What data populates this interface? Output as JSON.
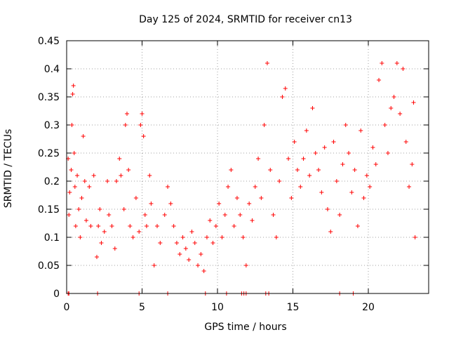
{
  "chart_data": {
    "type": "scatter",
    "title": "Day 125 of 2024, SRMTID for receiver cn13",
    "xlabel": "GPS time / hours",
    "ylabel": "SRMTID / TECUs",
    "xlim": [
      0,
      24
    ],
    "ylim": [
      0,
      0.45
    ],
    "xticks": [
      0,
      5,
      10,
      15,
      20
    ],
    "xtick_labels": [
      "0",
      "5",
      "10",
      "15",
      "20"
    ],
    "yticks": [
      0,
      0.05,
      0.1,
      0.15,
      0.2,
      0.25,
      0.3,
      0.35,
      0.4,
      0.45
    ],
    "ytick_labels": [
      "0",
      "0.05",
      "0.1",
      "0.15",
      "0.2",
      "0.25",
      "0.3",
      "0.35",
      "0.4",
      "0.45"
    ],
    "grid": true,
    "marker": "plus",
    "color": "#ff0000",
    "series": [
      {
        "name": "SRMTID",
        "points": [
          [
            0.1,
            0.24
          ],
          [
            0.15,
            0.14
          ],
          [
            0.2,
            0.18
          ],
          [
            0.3,
            0.22
          ],
          [
            0.35,
            0.3
          ],
          [
            0.4,
            0.355
          ],
          [
            0.45,
            0.37
          ],
          [
            0.5,
            0.25
          ],
          [
            0.55,
            0.19
          ],
          [
            0.6,
            0.12
          ],
          [
            0.7,
            0.21
          ],
          [
            0.8,
            0.15
          ],
          [
            0.9,
            0.1
          ],
          [
            1.0,
            0.17
          ],
          [
            1.1,
            0.28
          ],
          [
            1.2,
            0.2
          ],
          [
            1.3,
            0.13
          ],
          [
            1.5,
            0.19
          ],
          [
            1.6,
            0.12
          ],
          [
            1.8,
            0.21
          ],
          [
            2.0,
            0.065
          ],
          [
            2.1,
            0.12
          ],
          [
            2.2,
            0.15
          ],
          [
            2.3,
            0.09
          ],
          [
            2.5,
            0.11
          ],
          [
            2.7,
            0.2
          ],
          [
            2.8,
            0.14
          ],
          [
            3.0,
            0.12
          ],
          [
            3.2,
            0.08
          ],
          [
            3.3,
            0.2
          ],
          [
            3.5,
            0.24
          ],
          [
            3.6,
            0.21
          ],
          [
            3.8,
            0.15
          ],
          [
            3.9,
            0.3
          ],
          [
            4.0,
            0.32
          ],
          [
            4.1,
            0.22
          ],
          [
            4.2,
            0.12
          ],
          [
            4.4,
            0.1
          ],
          [
            4.6,
            0.17
          ],
          [
            4.8,
            0.11
          ],
          [
            4.9,
            0.3
          ],
          [
            5.0,
            0.32
          ],
          [
            5.1,
            0.28
          ],
          [
            5.2,
            0.14
          ],
          [
            5.3,
            0.12
          ],
          [
            5.5,
            0.21
          ],
          [
            5.6,
            0.16
          ],
          [
            5.8,
            0.05
          ],
          [
            6.0,
            0.12
          ],
          [
            6.2,
            0.09
          ],
          [
            6.5,
            0.14
          ],
          [
            6.7,
            0.19
          ],
          [
            6.9,
            0.16
          ],
          [
            7.1,
            0.12
          ],
          [
            7.3,
            0.09
          ],
          [
            7.5,
            0.07
          ],
          [
            7.7,
            0.1
          ],
          [
            7.9,
            0.08
          ],
          [
            8.1,
            0.06
          ],
          [
            8.3,
            0.11
          ],
          [
            8.5,
            0.09
          ],
          [
            8.7,
            0.05
          ],
          [
            8.9,
            0.07
          ],
          [
            9.1,
            0.04
          ],
          [
            9.3,
            0.1
          ],
          [
            9.5,
            0.13
          ],
          [
            9.7,
            0.09
          ],
          [
            9.9,
            0.12
          ],
          [
            10.1,
            0.16
          ],
          [
            10.3,
            0.1
          ],
          [
            10.5,
            0.14
          ],
          [
            10.7,
            0.19
          ],
          [
            10.9,
            0.22
          ],
          [
            11.1,
            0.12
          ],
          [
            11.3,
            0.17
          ],
          [
            11.5,
            0.14
          ],
          [
            11.7,
            0.1
          ],
          [
            11.9,
            0.05
          ],
          [
            12.1,
            0.16
          ],
          [
            12.3,
            0.13
          ],
          [
            12.5,
            0.19
          ],
          [
            12.7,
            0.24
          ],
          [
            12.9,
            0.17
          ],
          [
            13.1,
            0.3
          ],
          [
            13.3,
            0.41
          ],
          [
            13.5,
            0.22
          ],
          [
            13.7,
            0.14
          ],
          [
            13.9,
            0.1
          ],
          [
            14.1,
            0.2
          ],
          [
            14.3,
            0.35
          ],
          [
            14.5,
            0.365
          ],
          [
            14.7,
            0.24
          ],
          [
            14.9,
            0.17
          ],
          [
            15.1,
            0.27
          ],
          [
            15.3,
            0.22
          ],
          [
            15.5,
            0.19
          ],
          [
            15.7,
            0.24
          ],
          [
            15.9,
            0.29
          ],
          [
            16.1,
            0.21
          ],
          [
            16.3,
            0.33
          ],
          [
            16.5,
            0.25
          ],
          [
            16.7,
            0.22
          ],
          [
            16.9,
            0.18
          ],
          [
            17.1,
            0.26
          ],
          [
            17.3,
            0.15
          ],
          [
            17.5,
            0.11
          ],
          [
            17.7,
            0.27
          ],
          [
            17.9,
            0.2
          ],
          [
            18.1,
            0.14
          ],
          [
            18.3,
            0.23
          ],
          [
            18.5,
            0.3
          ],
          [
            18.7,
            0.25
          ],
          [
            18.9,
            0.18
          ],
          [
            19.1,
            0.22
          ],
          [
            19.3,
            0.12
          ],
          [
            19.5,
            0.29
          ],
          [
            19.7,
            0.17
          ],
          [
            19.9,
            0.21
          ],
          [
            20.1,
            0.19
          ],
          [
            20.3,
            0.26
          ],
          [
            20.5,
            0.23
          ],
          [
            20.7,
            0.38
          ],
          [
            20.9,
            0.41
          ],
          [
            21.1,
            0.3
          ],
          [
            21.3,
            0.25
          ],
          [
            21.5,
            0.33
          ],
          [
            21.7,
            0.35
          ],
          [
            21.9,
            0.41
          ],
          [
            22.1,
            0.32
          ],
          [
            22.3,
            0.4
          ],
          [
            22.5,
            0.27
          ],
          [
            22.7,
            0.19
          ],
          [
            22.9,
            0.23
          ],
          [
            23.0,
            0.34
          ],
          [
            23.1,
            0.1
          ]
        ]
      }
    ],
    "zero_points": [
      0.1,
      0.15,
      2.05,
      4.8,
      6.7,
      9.2,
      10.6,
      11.6,
      11.75,
      11.9,
      13.2,
      13.4,
      18.1,
      19.0
    ]
  }
}
